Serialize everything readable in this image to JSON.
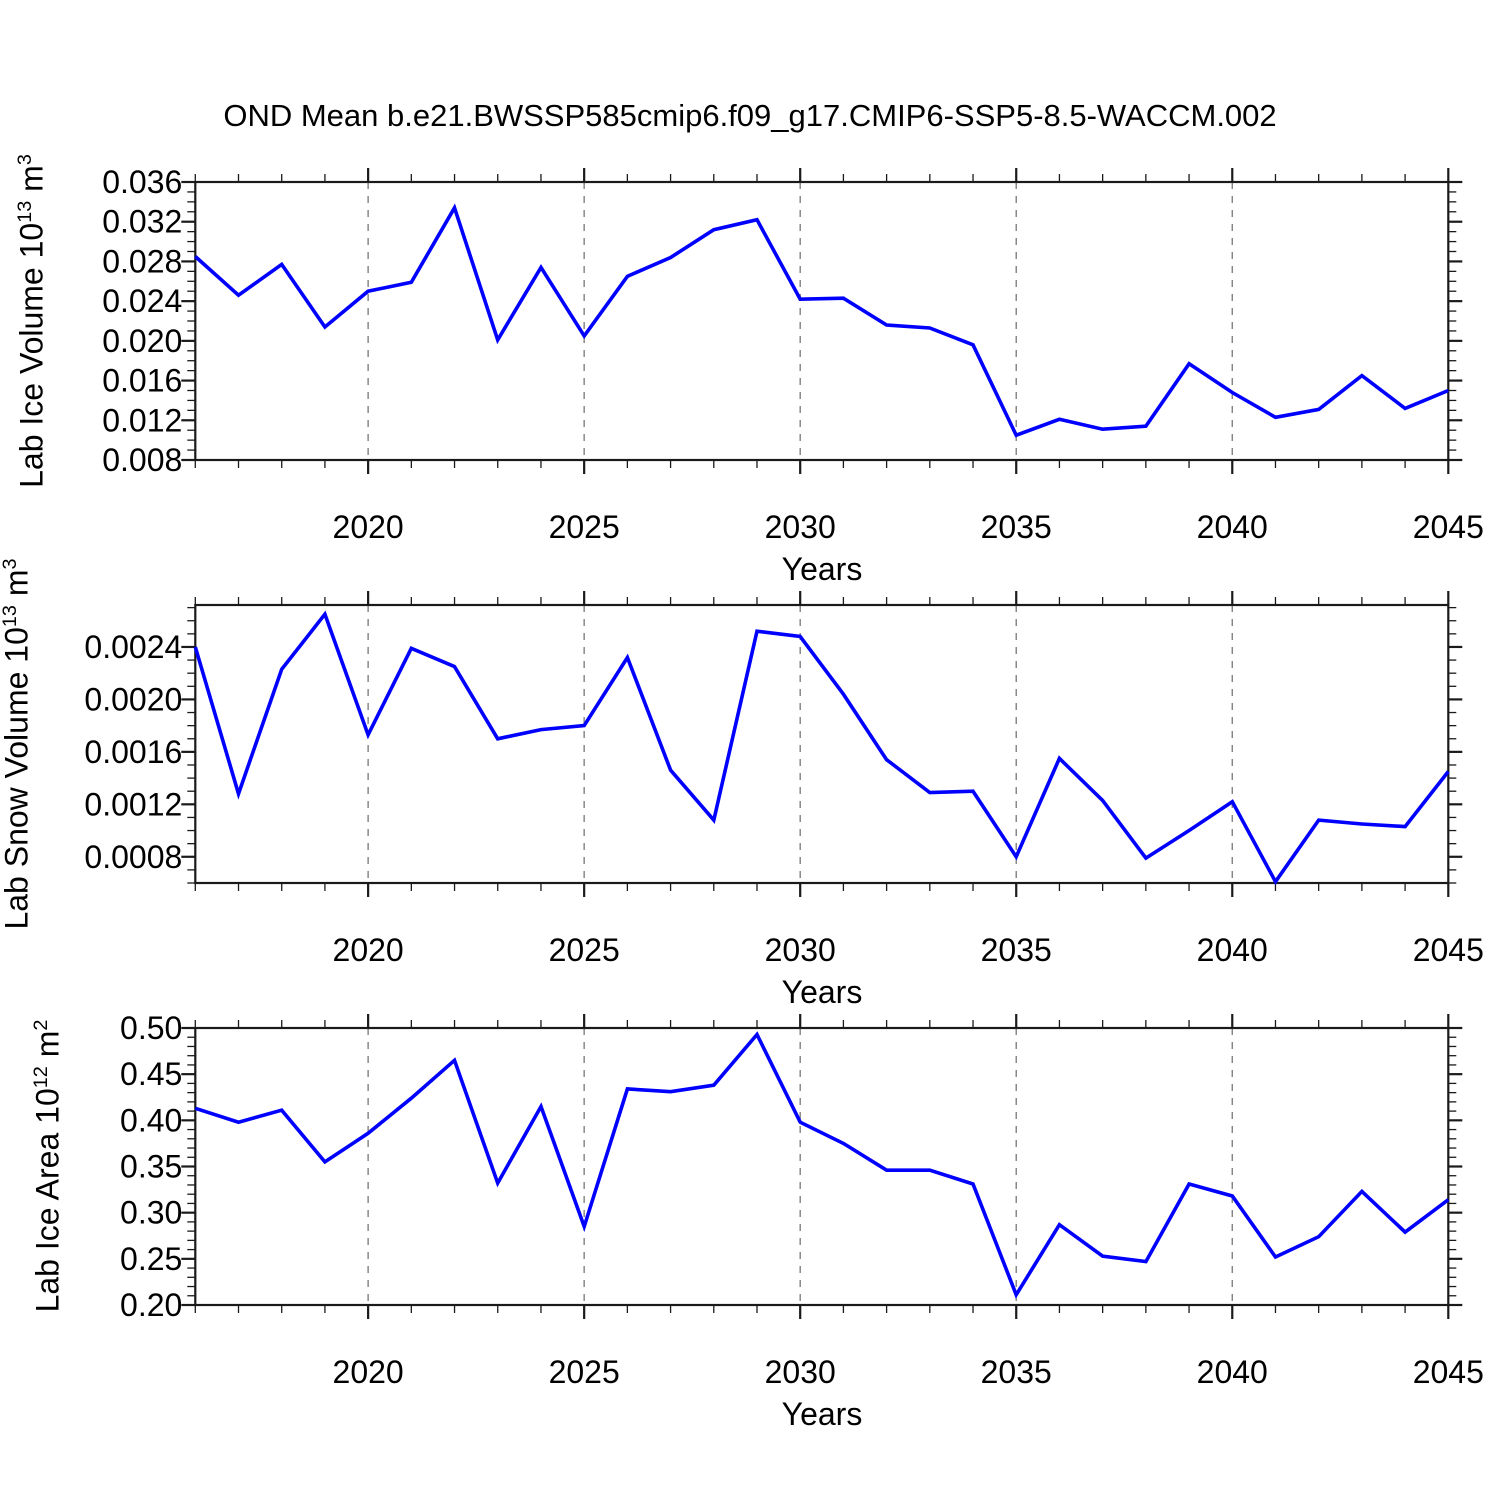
{
  "title": "OND Mean b.e21.BWSSP585cmip6.f09_g17.CMIP6-SSP5-8.5-WACCM.002",
  "colors": {
    "line": "#0000ff",
    "frame": "#1a1a1a",
    "grid": "#808080",
    "text": "#000000",
    "background": "#ffffff"
  },
  "chart_data": [
    {
      "type": "line",
      "panel": "ice-volume",
      "ylabel": "Lab Ice Volume 10^13 m^3",
      "ylabel_parts": [
        "Lab Ice Volume 10",
        "13",
        " m",
        "3"
      ],
      "xlabel": "Years",
      "x": [
        2016,
        2017,
        2018,
        2019,
        2020,
        2021,
        2022,
        2023,
        2024,
        2025,
        2026,
        2027,
        2028,
        2029,
        2030,
        2031,
        2032,
        2033,
        2034,
        2035,
        2036,
        2037,
        2038,
        2039,
        2040,
        2041,
        2042,
        2043,
        2044,
        2045
      ],
      "values": [
        0.0285,
        0.0246,
        0.0277,
        0.0214,
        0.025,
        0.0259,
        0.0334,
        0.0201,
        0.0274,
        0.0205,
        0.0265,
        0.0284,
        0.0312,
        0.0322,
        0.0242,
        0.0243,
        0.0216,
        0.0213,
        0.0196,
        0.0105,
        0.0121,
        0.0111,
        0.0114,
        0.0177,
        0.0148,
        0.0123,
        0.0131,
        0.0165,
        0.0132,
        0.015
      ],
      "ylim": [
        0.008,
        0.036
      ],
      "ytick_labels": [
        "0.008",
        "0.012",
        "0.016",
        "0.020",
        "0.024",
        "0.028",
        "0.032",
        "0.036"
      ],
      "ytick_values": [
        0.008,
        0.012,
        0.016,
        0.02,
        0.024,
        0.028,
        0.032,
        0.036
      ],
      "yminor_step": 0.001,
      "xlim": [
        2016,
        2045
      ],
      "xtick_labels": [
        "2020",
        "2025",
        "2030",
        "2035",
        "2040",
        "2045"
      ],
      "xtick_values": [
        2020,
        2025,
        2030,
        2035,
        2040,
        2045
      ],
      "xminor_step": 1,
      "grid_x_values": [
        2020,
        2025,
        2030,
        2035,
        2040
      ],
      "grid_style": "dashed-vertical",
      "legend": "none"
    },
    {
      "type": "line",
      "panel": "snow-volume",
      "ylabel": "Lab Snow Volume 10^13 m^3",
      "ylabel_parts": [
        "Lab Snow Volume 10",
        "13",
        " m",
        "3"
      ],
      "xlabel": "Years",
      "x": [
        2016,
        2017,
        2018,
        2019,
        2020,
        2021,
        2022,
        2023,
        2024,
        2025,
        2026,
        2027,
        2028,
        2029,
        2030,
        2031,
        2032,
        2033,
        2034,
        2035,
        2036,
        2037,
        2038,
        2039,
        2040,
        2041,
        2042,
        2043,
        2044,
        2045
      ],
      "values": [
        0.0024,
        0.00128,
        0.00223,
        0.00265,
        0.00173,
        0.00239,
        0.00225,
        0.0017,
        0.00177,
        0.0018,
        0.00232,
        0.00146,
        0.00108,
        0.00252,
        0.00248,
        0.00204,
        0.00154,
        0.00129,
        0.0013,
        0.0008,
        0.00155,
        0.00123,
        0.00079,
        0.001,
        0.00122,
        0.00061,
        0.00108,
        0.00105,
        0.00103,
        0.00145
      ],
      "ylim": [
        0.0006,
        0.00272
      ],
      "ytick_labels": [
        "0.0008",
        "0.0012",
        "0.0016",
        "0.0020",
        "0.0024"
      ],
      "ytick_values": [
        0.0008,
        0.0012,
        0.0016,
        0.002,
        0.0024
      ],
      "yminor_step": 0.0001,
      "xlim": [
        2016,
        2045
      ],
      "xtick_labels": [
        "2020",
        "2025",
        "2030",
        "2035",
        "2040",
        "2045"
      ],
      "xtick_values": [
        2020,
        2025,
        2030,
        2035,
        2040,
        2045
      ],
      "xminor_step": 1,
      "grid_x_values": [
        2020,
        2025,
        2030,
        2035,
        2040
      ],
      "grid_style": "dashed-vertical",
      "legend": "none"
    },
    {
      "type": "line",
      "panel": "ice-area",
      "ylabel": "Lab Ice Area 10^12 m^2",
      "ylabel_parts": [
        "Lab Ice Area 10",
        "12",
        " m",
        "2"
      ],
      "xlabel": "Years",
      "x": [
        2016,
        2017,
        2018,
        2019,
        2020,
        2021,
        2022,
        2023,
        2024,
        2025,
        2026,
        2027,
        2028,
        2029,
        2030,
        2031,
        2032,
        2033,
        2034,
        2035,
        2036,
        2037,
        2038,
        2039,
        2040,
        2041,
        2042,
        2043,
        2044,
        2045
      ],
      "values": [
        0.413,
        0.398,
        0.411,
        0.355,
        0.386,
        0.424,
        0.465,
        0.332,
        0.415,
        0.285,
        0.434,
        0.431,
        0.438,
        0.493,
        0.398,
        0.375,
        0.346,
        0.346,
        0.331,
        0.211,
        0.287,
        0.253,
        0.247,
        0.331,
        0.318,
        0.252,
        0.274,
        0.323,
        0.279,
        0.314
      ],
      "ylim": [
        0.2,
        0.5
      ],
      "ytick_labels": [
        "0.20",
        "0.25",
        "0.30",
        "0.35",
        "0.40",
        "0.45",
        "0.50"
      ],
      "ytick_values": [
        0.2,
        0.25,
        0.3,
        0.35,
        0.4,
        0.45,
        0.5
      ],
      "yminor_step": 0.01,
      "xlim": [
        2016,
        2045
      ],
      "xtick_labels": [
        "2020",
        "2025",
        "2030",
        "2035",
        "2040",
        "2045"
      ],
      "xtick_values": [
        2020,
        2025,
        2030,
        2035,
        2040,
        2045
      ],
      "xminor_step": 1,
      "grid_x_values": [
        2020,
        2025,
        2030,
        2035,
        2040
      ],
      "grid_style": "dashed-vertical",
      "legend": "none"
    }
  ]
}
